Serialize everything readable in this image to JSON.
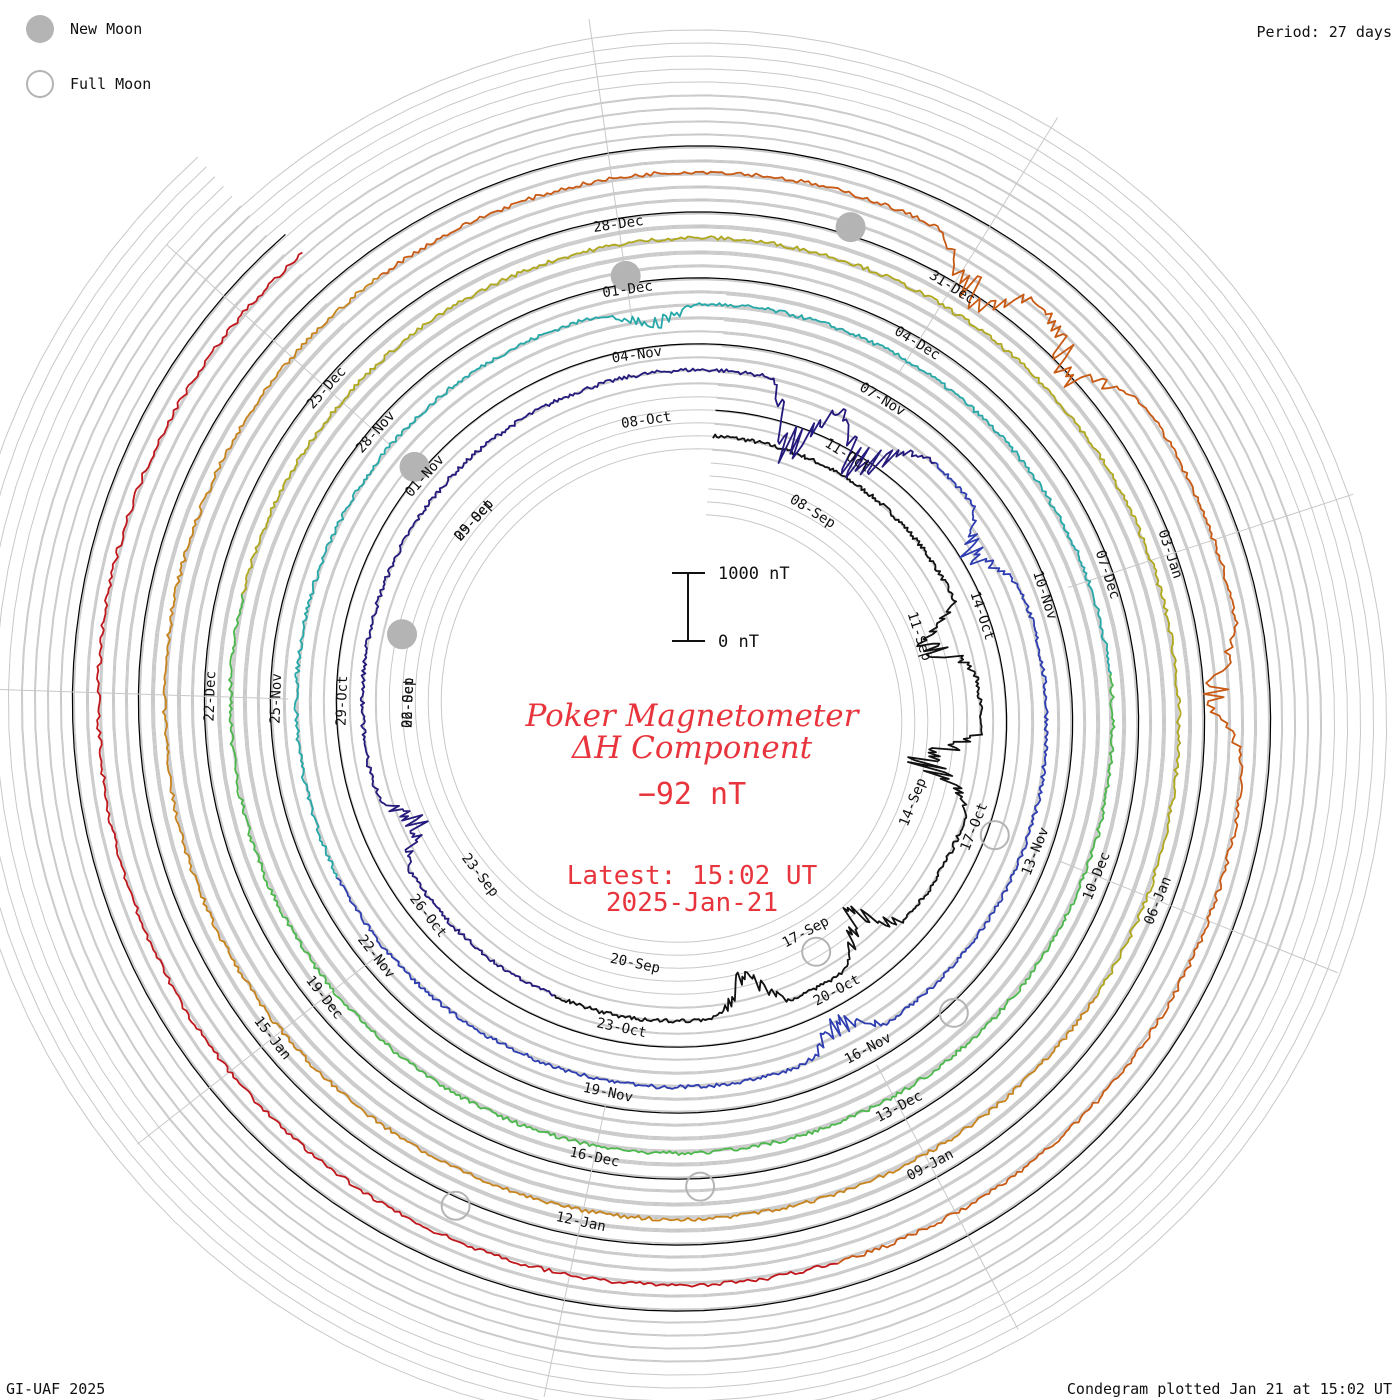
{
  "legend": {
    "new_moon_label": "New Moon",
    "full_moon_label": "Full Moon"
  },
  "period_label": "Period: 27 days",
  "credit": "GI-UAF 2025",
  "footer": "Condegram plotted Jan 21 at 15:02 UT",
  "colors": {
    "title": "#e8343c",
    "grid": "#c8c8c8",
    "moon": "#b4b4b4",
    "ring_colors": [
      "#111111",
      "#241a7c",
      "#2e3eb0",
      "#26a8a8",
      "#4cb84c",
      "#b0a81c",
      "#c8841c",
      "#c85a14",
      "#c0181c"
    ]
  },
  "chart_data": {
    "type": "line",
    "title": "Poker Magnetometer",
    "subtitle": "ΔH Component",
    "current_value": "−92 nT",
    "latest_time": "Latest: 15:02 UT",
    "latest_date": "2025-Jan-21",
    "scale_bar": {
      "top_label": "1000 nT",
      "bottom_label": "0 nT"
    },
    "period_days": 27,
    "date_labels": [
      "08-Sep",
      "11-Sep",
      "14-Sep",
      "17-Sep",
      "20-Sep",
      "23-Sep",
      "26-Sep",
      "29-Sep",
      "02-Oct",
      "05-Oct",
      "08-Oct",
      "11-Oct",
      "14-Oct",
      "17-Oct",
      "20-Oct",
      "23-Oct",
      "26-Oct",
      "29-Oct",
      "01-Nov",
      "04-Nov",
      "07-Nov",
      "10-Nov",
      "13-Nov",
      "16-Nov",
      "19-Nov",
      "22-Nov",
      "25-Nov",
      "28-Nov",
      "01-Dec",
      "04-Dec",
      "07-Dec",
      "10-Dec",
      "13-Dec",
      "16-Dec",
      "19-Dec",
      "22-Dec",
      "25-Dec",
      "28-Dec",
      "31-Dec",
      "03-Jan",
      "06-Jan",
      "09-Jan",
      "12-Jan",
      "15-Jan"
    ],
    "new_moons": [
      "03-Oct",
      "01-Nov",
      "01-Dec",
      "30-Dec"
    ],
    "full_moons": [
      "17-Sep",
      "17-Oct",
      "15-Nov",
      "15-Dec",
      "13-Jan"
    ],
    "start_date": "06-Sep",
    "end_date": "21-Jan",
    "disturbances": [
      {
        "date": "11-Sep",
        "min_nT": -900
      },
      {
        "date": "13-Sep",
        "min_nT": -1200
      },
      {
        "date": "16-Sep",
        "min_nT": -800
      },
      {
        "date": "18-Sep",
        "min_nT": -700
      },
      {
        "date": "24-Sep",
        "min_nT": -600
      },
      {
        "date": "10-Oct",
        "min_nT": -1300
      },
      {
        "date": "11-Oct",
        "min_nT": -1100
      },
      {
        "date": "13-Oct",
        "min_nT": -600
      },
      {
        "date": "20-Oct",
        "min_nT": -500
      },
      {
        "date": "04-Nov",
        "min_nT": -400
      },
      {
        "date": "31-Dec",
        "min_nT": -900
      },
      {
        "date": "01-Jan",
        "min_nT": -800
      },
      {
        "date": "04-Jan",
        "min_nT": -600
      }
    ]
  }
}
